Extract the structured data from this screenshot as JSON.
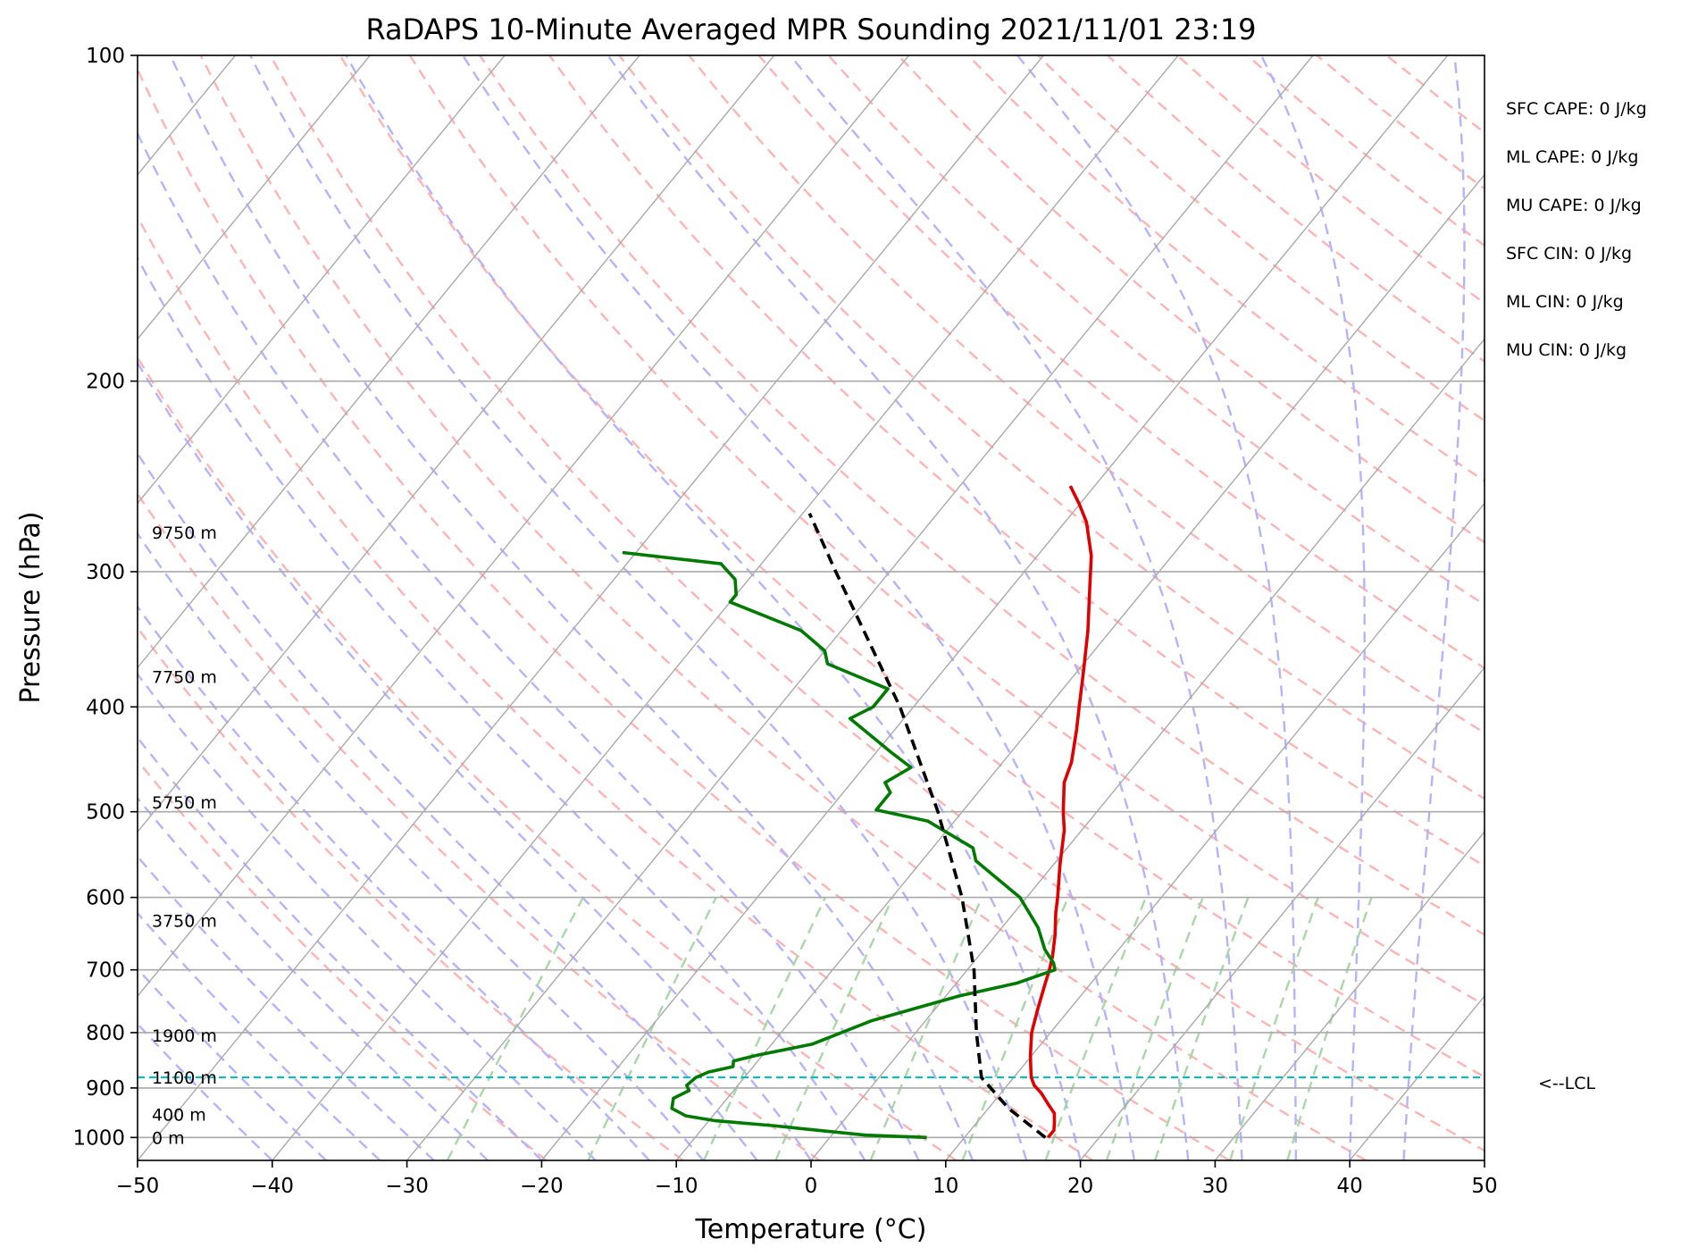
{
  "chart_data": {
    "type": "line",
    "title": "RaDAPS 10-Minute Averaged MPR Sounding 2021/11/01 23:19",
    "xlabel": "Temperature (°C)",
    "ylabel": "Pressure (hPa)",
    "xlim": [
      -50,
      50
    ],
    "ylim": [
      1050,
      100
    ],
    "y_scale": "log",
    "skew": "skew-T log-p",
    "x_ticks": [
      -50,
      -40,
      -30,
      -20,
      -10,
      0,
      10,
      20,
      30,
      40,
      50
    ],
    "x_tick_labels": [
      "−50",
      "−40",
      "−30",
      "−20",
      "−10",
      "0",
      "10",
      "20",
      "30",
      "40",
      "50"
    ],
    "y_ticks": [
      100,
      200,
      300,
      400,
      500,
      600,
      700,
      800,
      900,
      1000
    ],
    "y_tick_labels": [
      "100",
      "200",
      "300",
      "400",
      "500",
      "600",
      "700",
      "800",
      "900",
      "1000"
    ],
    "grid": true,
    "series": [
      {
        "role": "temperature",
        "color": "#e00000",
        "points": [
          [
            1000,
            16.2
          ],
          [
            985,
            16.2
          ],
          [
            970,
            15.8
          ],
          [
            950,
            15.2
          ],
          [
            930,
            14.1
          ],
          [
            910,
            13.0
          ],
          [
            895,
            12.0
          ],
          [
            880,
            11.3
          ],
          [
            860,
            10.6
          ],
          [
            840,
            9.9
          ],
          [
            800,
            8.6
          ],
          [
            760,
            7.6
          ],
          [
            720,
            6.6
          ],
          [
            700,
            6.1
          ],
          [
            680,
            5.5
          ],
          [
            650,
            4.4
          ],
          [
            620,
            3.1
          ],
          [
            600,
            2.3
          ],
          [
            560,
            0.5
          ],
          [
            520,
            -1.3
          ],
          [
            500,
            -2.5
          ],
          [
            470,
            -4.2
          ],
          [
            450,
            -4.9
          ],
          [
            420,
            -6.5
          ],
          [
            400,
            -7.7
          ],
          [
            370,
            -9.6
          ],
          [
            340,
            -11.7
          ],
          [
            310,
            -14.2
          ],
          [
            290,
            -16.0
          ],
          [
            270,
            -18.4
          ],
          [
            260,
            -20.0
          ],
          [
            250,
            -21.8
          ]
        ]
      },
      {
        "role": "dewpoint",
        "color": "#007a00",
        "points": [
          [
            1000,
            7.2
          ],
          [
            995,
            2.5
          ],
          [
            975,
            -5.0
          ],
          [
            965,
            -9.5
          ],
          [
            955,
            -12.0
          ],
          [
            940,
            -13.5
          ],
          [
            920,
            -14.0
          ],
          [
            905,
            -13.3
          ],
          [
            895,
            -13.8
          ],
          [
            880,
            -13.6
          ],
          [
            870,
            -13.0
          ],
          [
            860,
            -11.5
          ],
          [
            850,
            -11.8
          ],
          [
            840,
            -10.5
          ],
          [
            820,
            -7.0
          ],
          [
            780,
            -4.0
          ],
          [
            740,
            1.0
          ],
          [
            720,
            4.5
          ],
          [
            700,
            6.5
          ],
          [
            690,
            6.0
          ],
          [
            670,
            4.5
          ],
          [
            640,
            2.7
          ],
          [
            600,
            -0.5
          ],
          [
            555,
            -6.0
          ],
          [
            540,
            -7.0
          ],
          [
            510,
            -12.0
          ],
          [
            498,
            -16.5
          ],
          [
            480,
            -16.5
          ],
          [
            470,
            -17.5
          ],
          [
            455,
            -16.5
          ],
          [
            440,
            -19.0
          ],
          [
            410,
            -24.0
          ],
          [
            400,
            -23.0
          ],
          [
            385,
            -23.0
          ],
          [
            365,
            -29.0
          ],
          [
            355,
            -30.0
          ],
          [
            340,
            -33.0
          ],
          [
            320,
            -40.0
          ],
          [
            315,
            -40.0
          ],
          [
            305,
            -41.0
          ],
          [
            295,
            -43.0
          ],
          [
            288,
            -51.0
          ]
        ]
      },
      {
        "role": "parcel",
        "color": "#000000",
        "dashed": true,
        "points": [
          [
            1000,
            16.0
          ],
          [
            940,
            11.5
          ],
          [
            880,
            7.6
          ],
          [
            800,
            4.5
          ],
          [
            700,
            0.5
          ],
          [
            600,
            -4.8
          ],
          [
            500,
            -11.8
          ],
          [
            400,
            -21.0
          ],
          [
            300,
            -34.0
          ],
          [
            265,
            -39.5
          ]
        ]
      }
    ],
    "lcl": {
      "pressure": 880,
      "label": "<--LCL"
    },
    "height_labels": [
      {
        "p": 1000,
        "label": "0 m"
      },
      {
        "p": 952,
        "label": "400 m"
      },
      {
        "p": 880,
        "label": "1100 m"
      },
      {
        "p": 805,
        "label": "1900 m"
      },
      {
        "p": 630,
        "label": "3750 m"
      },
      {
        "p": 490,
        "label": "5750 m"
      },
      {
        "p": 375,
        "label": "7750 m"
      },
      {
        "p": 276,
        "label": "9750 m"
      }
    ],
    "indices": [
      "SFC CAPE: 0 J/kg",
      "ML CAPE: 0 J/kg",
      "MU CAPE: 0 J/kg",
      "SFC CIN: 0 J/kg",
      "ML CIN: 0 J/kg",
      "MU CIN: 0 J/kg"
    ],
    "colors": {
      "isotherm": "#aaaaaa",
      "isobar": "#aaaaaa",
      "dry_adiabat": "#ffb3b3",
      "moist_adiabat": "#b3b3ff",
      "mixing_ratio": "#a8d8a8",
      "lcl": "#00c0c0"
    }
  }
}
